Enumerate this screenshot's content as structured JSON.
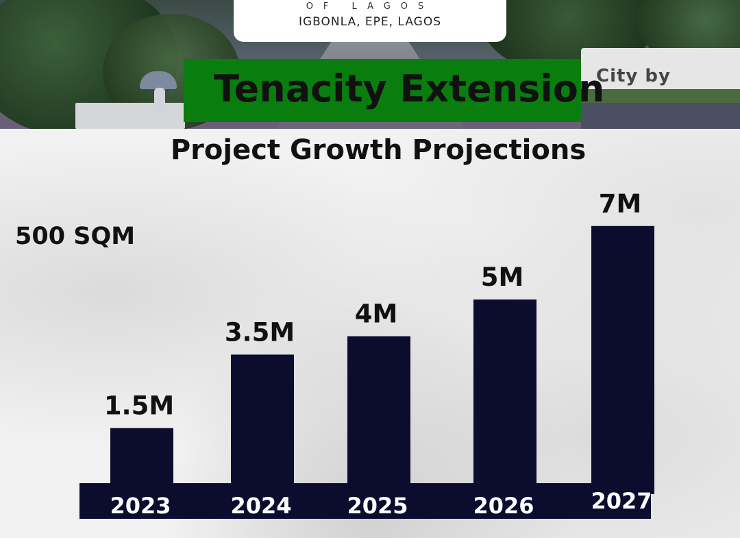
{
  "header": {
    "logo_tagline": "OF LAGOS",
    "location": "IGBONLA, EPE, LAGOS",
    "project_name": "Tenacity Extension",
    "background_sign_text": "City by"
  },
  "plot_size": "500 SQM",
  "colors": {
    "banner_green": "#0a7d0f",
    "bar_navy": "#0b0c2e",
    "text_dark": "#111111",
    "axis_label_white": "#ffffff"
  },
  "chart_data": {
    "type": "bar",
    "title": "Project Growth Projections",
    "xlabel": "",
    "ylabel": "",
    "categories": [
      "2023",
      "2024",
      "2025",
      "2026",
      "2027"
    ],
    "values": [
      1.5,
      3.5,
      4,
      5,
      7
    ],
    "value_labels": [
      "1.5M",
      "3.5M",
      "4M",
      "5M",
      "7M"
    ],
    "grid": false,
    "legend": "none"
  }
}
